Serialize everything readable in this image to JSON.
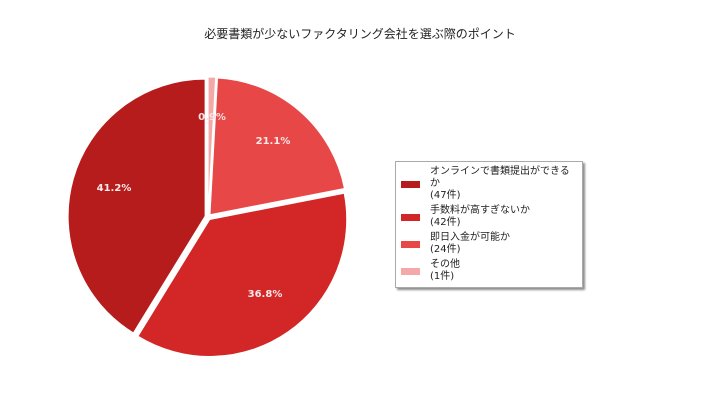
{
  "chart_data": {
    "type": "pie",
    "title": "必要書類が少ないファクタリング会社を選ぶ際のポイント",
    "categories": [
      "オンラインで書類提出ができるか",
      "手数料が高すぎないか",
      "即日入金が可能か",
      "その他"
    ],
    "values": [
      47,
      42,
      24,
      1
    ],
    "percentages": [
      41.2,
      36.8,
      21.1,
      0.9
    ],
    "percentage_labels": [
      "41.2%",
      "36.8%",
      "21.1%",
      "0.9%"
    ],
    "colors": [
      "#b71c1c",
      "#d32626",
      "#e84747",
      "#f4a8a8"
    ],
    "legend": [
      {
        "label": "オンラインで書類提出ができるか",
        "count": "(47件)"
      },
      {
        "label": "手数料が高すぎないか",
        "count": "(42件)"
      },
      {
        "label": "即日入金が可能か",
        "count": "(24件)"
      },
      {
        "label": "その他",
        "count": "(1件)"
      }
    ],
    "legend_position": "right",
    "start_angle_deg": 0,
    "direction": "clockwise",
    "slice_order": [
      "その他",
      "即日入金が可能か",
      "手数料が高すぎないか",
      "オンラインで書類提出ができるか"
    ]
  }
}
